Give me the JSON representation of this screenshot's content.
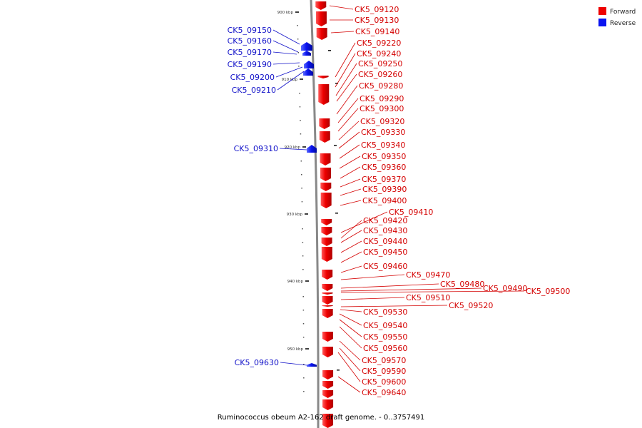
{
  "caption": "Ruminococcus obeum A2-162 draft genome. - 0..3757491",
  "legend": [
    {
      "label": "Forward",
      "color": "#ee0000"
    },
    {
      "label": "Reverse",
      "color": "#0a14f0"
    }
  ],
  "colors": {
    "forward": "#ee0000",
    "reverse": "#0a14f0",
    "backbone": "#888888"
  },
  "axis": {
    "ticks": [
      "900 kbp",
      "910 kbp",
      "920 kbp",
      "930 kbp",
      "940 kbp",
      "950 kbp"
    ]
  },
  "forward_genes": [
    "CK5_09120",
    "CK5_09130",
    "CK5_09140",
    "CK5_09220",
    "CK5_09240",
    "CK5_09250",
    "CK5_09260",
    "CK5_09280",
    "CK5_09290",
    "CK5_09300",
    "CK5_09320",
    "CK5_09330",
    "CK5_09340",
    "CK5_09350",
    "CK5_09360",
    "CK5_09370",
    "CK5_09390",
    "CK5_09400",
    "CK5_09410",
    "CK5_09420",
    "CK5_09430",
    "CK5_09440",
    "CK5_09450",
    "CK5_09460",
    "CK5_09470",
    "CK5_09480",
    "CK5_09490",
    "CK5_09500",
    "CK5_09510",
    "CK5_09520",
    "CK5_09530",
    "CK5_09540",
    "CK5_09550",
    "CK5_09560",
    "CK5_09570",
    "CK5_09590",
    "CK5_09600",
    "CK5_09640"
  ],
  "reverse_genes": [
    "CK5_09150",
    "CK5_09160",
    "CK5_09170",
    "CK5_09190",
    "CK5_09200",
    "CK5_09210",
    "CK5_09310",
    "CK5_09630"
  ]
}
